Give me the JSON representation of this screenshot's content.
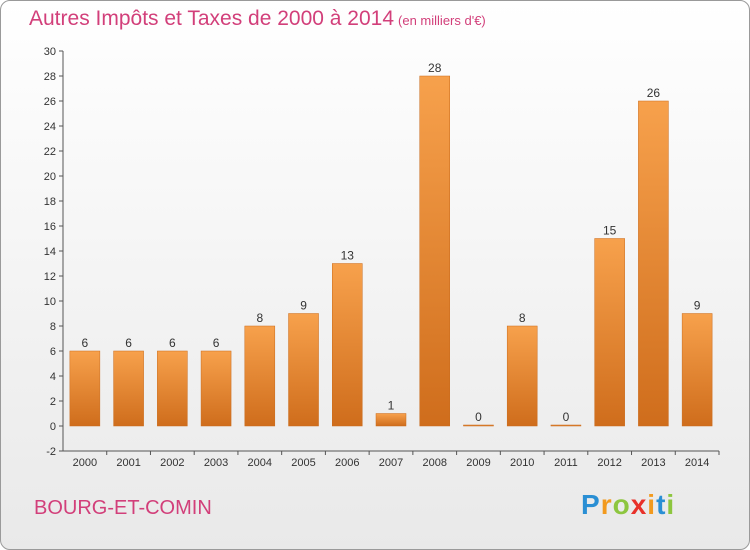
{
  "header": {
    "title": "Autres Impôts et Taxes de 2000 à 2014",
    "subtitle": "(en milliers d'€)"
  },
  "footer": {
    "town": "BOURG-ET-COMIN",
    "logo": "Proxiti",
    "logo_letters": [
      {
        "ch": "P",
        "color": "#2a8fd4"
      },
      {
        "ch": "r",
        "color": "#f29a1e"
      },
      {
        "ch": "o",
        "color": "#8dc63f"
      },
      {
        "ch": "x",
        "color": "#e8312a"
      },
      {
        "ch": "i",
        "color": "#f29a1e"
      },
      {
        "ch": "t",
        "color": "#2a8fd4"
      },
      {
        "ch": "i",
        "color": "#8dc63f"
      }
    ]
  },
  "colors": {
    "accent": "#d23f7a",
    "bar_top": "#f7a14c",
    "bar_bottom": "#cf6d1c"
  },
  "chart_data": {
    "type": "bar",
    "categories": [
      "2000",
      "2001",
      "2002",
      "2003",
      "2004",
      "2005",
      "2006",
      "2007",
      "2008",
      "2009",
      "2010",
      "2011",
      "2012",
      "2013",
      "2014"
    ],
    "values": [
      6,
      6,
      6,
      6,
      8,
      9,
      13,
      1,
      28,
      0,
      8,
      0,
      15,
      26,
      9
    ],
    "ylim": [
      -2,
      30
    ],
    "yticks": [
      -2,
      0,
      2,
      4,
      6,
      8,
      10,
      12,
      14,
      16,
      18,
      20,
      22,
      24,
      26,
      28,
      30
    ],
    "grid": false,
    "xlabel": "",
    "ylabel": ""
  }
}
